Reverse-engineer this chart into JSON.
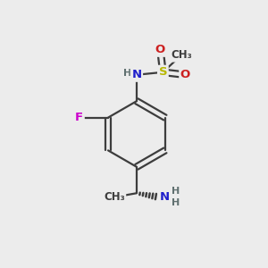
{
  "background_color": "#ececec",
  "bond_color": "#3d3d3d",
  "atom_colors": {
    "N": "#2020cc",
    "S": "#b8b800",
    "O": "#cc2020",
    "F": "#cc00cc",
    "C": "#3d3d3d",
    "H": "#607070"
  },
  "figsize": [
    3.0,
    3.0
  ],
  "dpi": 100,
  "lw": 1.6
}
